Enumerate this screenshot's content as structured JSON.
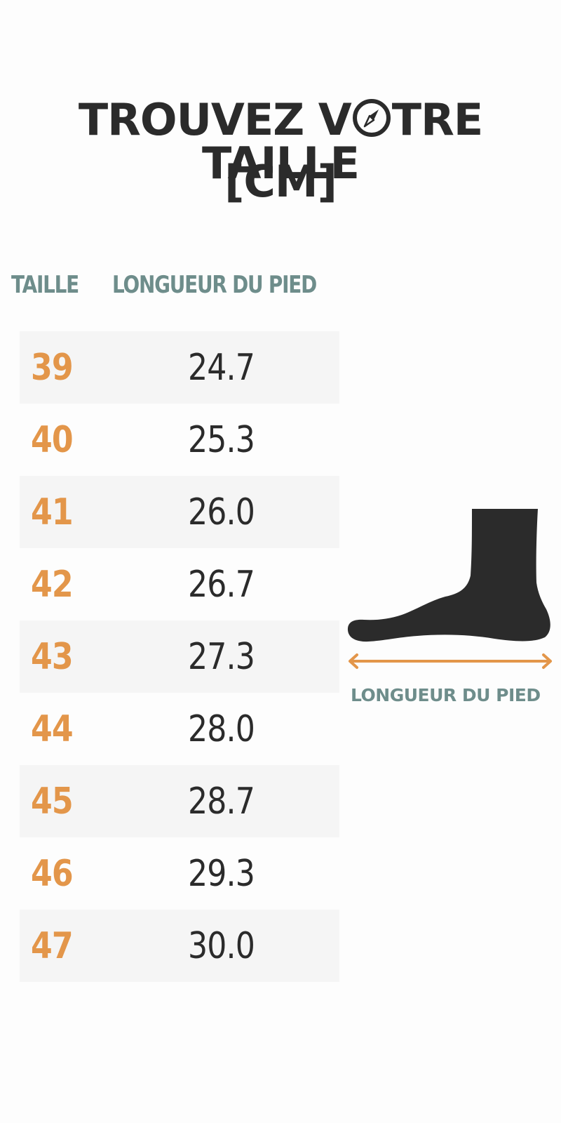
{
  "title": {
    "line1_before": "TROUVEZ V",
    "line1_after": "TRE TAILLE",
    "line2": "[CM]",
    "compass_icon": "compass-icon"
  },
  "columns": {
    "size": "TAILLE",
    "length": "LONGUEUR DU PIED"
  },
  "rows": [
    {
      "size": "39",
      "length": "24.7"
    },
    {
      "size": "40",
      "length": "25.3"
    },
    {
      "size": "41",
      "length": "26.0"
    },
    {
      "size": "42",
      "length": "26.7"
    },
    {
      "size": "43",
      "length": "27.3"
    },
    {
      "size": "44",
      "length": "28.0"
    },
    {
      "size": "45",
      "length": "28.7"
    },
    {
      "size": "46",
      "length": "29.3"
    },
    {
      "size": "47",
      "length": "30.0"
    }
  ],
  "illustration": {
    "icon": "foot-icon",
    "caption": "LONGUEUR DU PIED"
  },
  "colors": {
    "size_accent": "#e3964a",
    "heading_teal": "#6e8d8b",
    "text_dark": "#2b2b2b",
    "row_alt_bg": "#f5f5f5"
  }
}
